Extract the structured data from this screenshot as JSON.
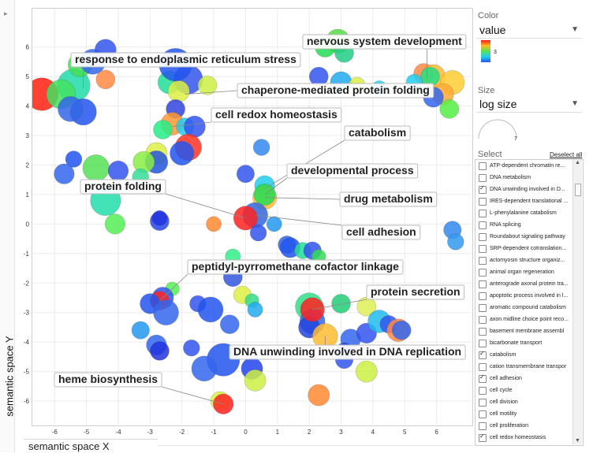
{
  "panel": {
    "color_title": "Color",
    "color_value": "value",
    "legend_max": "3",
    "size_title": "Size",
    "size_value": "log size",
    "size_legend_value": "7",
    "select_title": "Select",
    "deselect_all": "Deselect all"
  },
  "axes": {
    "ylabel": "semantic space Y",
    "xlabel": "semantic space X"
  },
  "list_items": [
    {
      "label": "ATP-dependent chromatin re...",
      "checked": false
    },
    {
      "label": "DNA metabolism",
      "checked": false
    },
    {
      "label": "DNA unwinding involved in D...",
      "checked": true
    },
    {
      "label": "IRES-dependent translational ...",
      "checked": false
    },
    {
      "label": "L-phenylalanine catabolism",
      "checked": false
    },
    {
      "label": "RNA splicing",
      "checked": false
    },
    {
      "label": "Roundabout signaling pathway",
      "checked": false
    },
    {
      "label": "SRP-dependent cotranslation...",
      "checked": false
    },
    {
      "label": "actomyosin structure organiz...",
      "checked": false
    },
    {
      "label": "animal organ regeneration",
      "checked": false
    },
    {
      "label": "anterograde axonal protein tra...",
      "checked": false
    },
    {
      "label": "apoptotic process involved in l...",
      "checked": false
    },
    {
      "label": "aromatic compound catabolism",
      "checked": false
    },
    {
      "label": "axon midline choice point reco...",
      "checked": false
    },
    {
      "label": "basement membrane assembl",
      "checked": false
    },
    {
      "label": "bicarbonate transport",
      "checked": false
    },
    {
      "label": "catabolism",
      "checked": true
    },
    {
      "label": "cation transmembrane transpor",
      "checked": false
    },
    {
      "label": "cell adhesion",
      "checked": true
    },
    {
      "label": "cell cycle",
      "checked": false
    },
    {
      "label": "cell division",
      "checked": false
    },
    {
      "label": "cell motility",
      "checked": false
    },
    {
      "label": "cell proliferation",
      "checked": false
    },
    {
      "label": "cell redox homeostasis",
      "checked": true
    }
  ],
  "chart_data": {
    "type": "scatter",
    "xlabel": "semantic space X",
    "ylabel": "semantic space Y",
    "xlim": [
      -6.7,
      7.1
    ],
    "ylim": [
      -6.8,
      7.3
    ],
    "xticks": [
      -6,
      -5,
      -4,
      -3,
      -2,
      -1,
      0,
      1,
      2,
      3,
      4,
      5,
      6
    ],
    "yticks": [
      -6,
      -5,
      -4,
      -3,
      -2,
      -1,
      0,
      1,
      2,
      3,
      4,
      5,
      6
    ],
    "points": [
      {
        "x": -5.4,
        "y": 4.7,
        "r": 2.6,
        "c": "#20dca8"
      },
      {
        "x": -6.4,
        "y": 4.4,
        "r": 2.6,
        "c": "#ff2010"
      },
      {
        "x": -5.8,
        "y": 4.4,
        "r": 2.3,
        "c": "#44e060"
      },
      {
        "x": -5.1,
        "y": 3.8,
        "r": 2.1,
        "c": "#2255ee"
      },
      {
        "x": -5.5,
        "y": 3.9,
        "r": 2.0,
        "c": "#3366e8"
      },
      {
        "x": -5.2,
        "y": 5.4,
        "r": 1.9,
        "c": "#44dd55"
      },
      {
        "x": -4.8,
        "y": 5.5,
        "r": 2.0,
        "c": "#3366ee"
      },
      {
        "x": -4.4,
        "y": 5.9,
        "r": 1.7,
        "c": "#3355ee"
      },
      {
        "x": -4.4,
        "y": 4.9,
        "r": 1.5,
        "c": "#ff8844"
      },
      {
        "x": -2.4,
        "y": 4.8,
        "r": 1.8,
        "c": "#22dd99"
      },
      {
        "x": -1.8,
        "y": 4.9,
        "r": 2.3,
        "c": "#3355ee"
      },
      {
        "x": -2.1,
        "y": 4.5,
        "r": 1.7,
        "c": "#ddee44"
      },
      {
        "x": -1.2,
        "y": 4.7,
        "r": 1.5,
        "c": "#ccf044"
      },
      {
        "x": -2.2,
        "y": 3.9,
        "r": 1.5,
        "c": "#3344dd"
      },
      {
        "x": -2.2,
        "y": 5.4,
        "r": 2.6,
        "c": "#2255ee"
      },
      {
        "x": -2.3,
        "y": 3.4,
        "r": 1.8,
        "c": "#ff9933"
      },
      {
        "x": -1.9,
        "y": 3.3,
        "r": 1.4,
        "c": "#22ccee"
      },
      {
        "x": -1.6,
        "y": 3.3,
        "r": 1.7,
        "c": "#3355ee"
      },
      {
        "x": -1.8,
        "y": 2.6,
        "r": 2.1,
        "c": "#ff3322"
      },
      {
        "x": -2.6,
        "y": 3.2,
        "r": 1.5,
        "c": "#22ee88"
      },
      {
        "x": -2.8,
        "y": 2.4,
        "r": 1.7,
        "c": "#ddee44"
      },
      {
        "x": -2.8,
        "y": 2.1,
        "r": 1.8,
        "c": "#2255dd"
      },
      {
        "x": -2.0,
        "y": 2.4,
        "r": 1.9,
        "c": "#2255ee"
      },
      {
        "x": -4.7,
        "y": 1.9,
        "r": 2.1,
        "c": "#55e055"
      },
      {
        "x": -5.4,
        "y": 2.2,
        "r": 1.3,
        "c": "#2255ee"
      },
      {
        "x": -5.7,
        "y": 1.7,
        "r": 1.6,
        "c": "#3366ee"
      },
      {
        "x": -4.0,
        "y": 1.8,
        "r": 1.6,
        "c": "#3355ee"
      },
      {
        "x": -3.2,
        "y": 2.1,
        "r": 1.7,
        "c": "#88ee44"
      },
      {
        "x": -3.3,
        "y": 1.6,
        "r": 1.3,
        "c": "#33dd99"
      },
      {
        "x": -4.4,
        "y": 0.8,
        "r": 2.4,
        "c": "#22ddaa"
      },
      {
        "x": -4.1,
        "y": 0.0,
        "r": 1.6,
        "c": "#55ee55"
      },
      {
        "x": -2.7,
        "y": 0.1,
        "r": 1.5,
        "c": "#2244ee"
      },
      {
        "x": -2.7,
        "y": 0.2,
        "r": 1.2,
        "c": "#2233dd"
      },
      {
        "x": -1.0,
        "y": 0.0,
        "r": 1.2,
        "c": "#ff8833"
      },
      {
        "x": 0.5,
        "y": 2.6,
        "r": 1.3,
        "c": "#3388ee"
      },
      {
        "x": 0.0,
        "y": 1.7,
        "r": 1.4,
        "c": "#3355ee"
      },
      {
        "x": 0.6,
        "y": 1.3,
        "r": 1.6,
        "c": "#22ccee"
      },
      {
        "x": 0.6,
        "y": 0.9,
        "r": 1.9,
        "c": "#ffbb33"
      },
      {
        "x": 0.6,
        "y": 1.0,
        "r": 1.7,
        "c": "#22dd55"
      },
      {
        "x": 0.3,
        "y": 0.3,
        "r": 2.0,
        "c": "#3366dd"
      },
      {
        "x": 0.0,
        "y": 0.2,
        "r": 1.9,
        "c": "#ff2222"
      },
      {
        "x": 0.4,
        "y": -0.3,
        "r": 1.3,
        "c": "#3355ee"
      },
      {
        "x": 0.9,
        "y": 0.0,
        "r": 1.2,
        "c": "#2299ee"
      },
      {
        "x": 1.3,
        "y": -0.7,
        "r": 1.4,
        "c": "#3366dd"
      },
      {
        "x": 1.4,
        "y": -0.8,
        "r": 1.6,
        "c": "#2255ee"
      },
      {
        "x": 1.8,
        "y": -0.9,
        "r": 1.3,
        "c": "#22dd99"
      },
      {
        "x": 2.1,
        "y": -0.9,
        "r": 1.4,
        "c": "#3355ee"
      },
      {
        "x": 2.3,
        "y": -1.1,
        "r": 1.1,
        "c": "#33dd55"
      },
      {
        "x": -0.4,
        "y": -1.1,
        "r": 1.2,
        "c": "#33ee88"
      },
      {
        "x": -0.4,
        "y": -1.8,
        "r": 1.5,
        "c": "#3355dd"
      },
      {
        "x": -2.3,
        "y": -2.2,
        "r": 1.1,
        "c": "#55ee55"
      },
      {
        "x": -2.6,
        "y": -2.5,
        "r": 1.7,
        "c": "#3355ee"
      },
      {
        "x": -2.7,
        "y": -2.6,
        "r": 1.5,
        "c": "#ff2222"
      },
      {
        "x": -3.0,
        "y": -2.7,
        "r": 1.6,
        "c": "#2255ee"
      },
      {
        "x": -2.5,
        "y": -3.0,
        "r": 2.0,
        "c": "#3366ee"
      },
      {
        "x": -1.5,
        "y": -2.7,
        "r": 1.3,
        "c": "#3355ee"
      },
      {
        "x": -1.1,
        "y": -2.9,
        "r": 2.0,
        "c": "#2255ee"
      },
      {
        "x": -0.1,
        "y": -2.4,
        "r": 1.4,
        "c": "#ddee44"
      },
      {
        "x": 0.2,
        "y": -2.6,
        "r": 1.1,
        "c": "#33dd88"
      },
      {
        "x": 0.3,
        "y": -2.9,
        "r": 1.2,
        "c": "#22aaee"
      },
      {
        "x": -0.5,
        "y": -3.4,
        "r": 1.5,
        "c": "#3366ee"
      },
      {
        "x": -3.3,
        "y": -3.6,
        "r": 1.4,
        "c": "#2299ee"
      },
      {
        "x": -2.8,
        "y": -4.1,
        "r": 1.6,
        "c": "#3366ee"
      },
      {
        "x": -1.7,
        "y": -4.2,
        "r": 1.3,
        "c": "#3355ee"
      },
      {
        "x": -2.7,
        "y": -4.3,
        "r": 1.5,
        "c": "#2233dd"
      },
      {
        "x": -0.7,
        "y": -4.6,
        "r": 2.6,
        "c": "#2255ee"
      },
      {
        "x": -1.3,
        "y": -4.9,
        "r": 2.0,
        "c": "#3366ee"
      },
      {
        "x": 0.2,
        "y": -4.9,
        "r": 1.7,
        "c": "#2244ee"
      },
      {
        "x": 0.3,
        "y": -5.3,
        "r": 1.7,
        "c": "#ccee44"
      },
      {
        "x": -0.8,
        "y": -6.0,
        "r": 1.5,
        "c": "#ddee44"
      },
      {
        "x": -0.7,
        "y": -6.1,
        "r": 1.6,
        "c": "#ff2222"
      },
      {
        "x": 2.0,
        "y": -2.8,
        "r": 2.2,
        "c": "#33dd88"
      },
      {
        "x": 2.1,
        "y": -3.3,
        "r": 2.0,
        "c": "#3366ee"
      },
      {
        "x": 2.0,
        "y": -3.5,
        "r": 1.7,
        "c": "#2244dd"
      },
      {
        "x": 2.1,
        "y": -2.9,
        "r": 1.9,
        "c": "#ff2222"
      },
      {
        "x": 3.0,
        "y": -2.7,
        "r": 1.5,
        "c": "#22cc77"
      },
      {
        "x": 3.8,
        "y": -2.8,
        "r": 1.5,
        "c": "#ddee55"
      },
      {
        "x": 2.5,
        "y": -3.8,
        "r": 2.0,
        "c": "#ffbb33"
      },
      {
        "x": 3.3,
        "y": -3.9,
        "r": 1.6,
        "c": "#3366ee"
      },
      {
        "x": 3.8,
        "y": -3.7,
        "r": 1.6,
        "c": "#3355ee"
      },
      {
        "x": 4.2,
        "y": -3.3,
        "r": 1.8,
        "c": "#22bbee"
      },
      {
        "x": 4.5,
        "y": -3.4,
        "r": 1.4,
        "c": "#3355ee"
      },
      {
        "x": 4.8,
        "y": -3.6,
        "r": 1.8,
        "c": "#ff8844"
      },
      {
        "x": 4.9,
        "y": -3.6,
        "r": 1.5,
        "c": "#3366ee"
      },
      {
        "x": 3.1,
        "y": -4.3,
        "r": 1.3,
        "c": "#2244dd"
      },
      {
        "x": 3.1,
        "y": -4.6,
        "r": 1.4,
        "c": "#3355ee"
      },
      {
        "x": 3.8,
        "y": -5.0,
        "r": 1.7,
        "c": "#ccee44"
      },
      {
        "x": 2.3,
        "y": -5.8,
        "r": 1.7,
        "c": "#ff8833"
      },
      {
        "x": 2.9,
        "y": 6.2,
        "r": 1.9,
        "c": "#55dd44"
      },
      {
        "x": 2.5,
        "y": 6.0,
        "r": 1.6,
        "c": "#22dd55"
      },
      {
        "x": 3.1,
        "y": 5.8,
        "r": 1.5,
        "c": "#22cc88"
      },
      {
        "x": 2.3,
        "y": 5.0,
        "r": 1.5,
        "c": "#3355ee"
      },
      {
        "x": 3.0,
        "y": 4.8,
        "r": 1.7,
        "c": "#22aaee"
      },
      {
        "x": 3.5,
        "y": 4.7,
        "r": 1.3,
        "c": "#ddee44"
      },
      {
        "x": 4.2,
        "y": 4.6,
        "r": 1.2,
        "c": "#22ccee"
      },
      {
        "x": 5.6,
        "y": 5.1,
        "r": 1.6,
        "c": "#ff8844"
      },
      {
        "x": 5.9,
        "y": 5.0,
        "r": 1.9,
        "c": "#ffbb33"
      },
      {
        "x": 6.5,
        "y": 4.8,
        "r": 1.9,
        "c": "#ffcc33"
      },
      {
        "x": 6.2,
        "y": 4.4,
        "r": 1.7,
        "c": "#ffaa33"
      },
      {
        "x": 5.8,
        "y": 5.0,
        "r": 1.5,
        "c": "#22dd88"
      },
      {
        "x": 5.3,
        "y": 4.8,
        "r": 1.3,
        "c": "#22ccee"
      },
      {
        "x": 5.9,
        "y": 4.3,
        "r": 1.6,
        "c": "#3366ee"
      },
      {
        "x": 6.4,
        "y": 3.9,
        "r": 1.5,
        "c": "#55ee44"
      },
      {
        "x": 6.5,
        "y": -0.2,
        "r": 1.4,
        "c": "#3388ee"
      },
      {
        "x": 6.6,
        "y": -0.6,
        "r": 1.3,
        "c": "#3399ee"
      }
    ],
    "labels": [
      {
        "text": "nervous system development",
        "ax": 5.7,
        "ay": 4.9
      },
      {
        "text": "response to endoplasmic reticulum stress",
        "ax": -5.1,
        "ay": 4.6
      },
      {
        "text": "chaperone-mediated protein folding",
        "ax": -1.9,
        "ay": 4.4
      },
      {
        "text": "cell redox homeostasis",
        "ax": -2.3,
        "ay": 3.3
      },
      {
        "text": "catabolism",
        "ax": 0.6,
        "ay": 1.2
      },
      {
        "text": "developmental process",
        "ax": 0.6,
        "ay": 1.0
      },
      {
        "text": "protein folding",
        "ax": 0.0,
        "ay": 0.2
      },
      {
        "text": "drug metabolism",
        "ax": 0.6,
        "ay": 0.9
      },
      {
        "text": "cell adhesion",
        "ax": 0.3,
        "ay": 0.3
      },
      {
        "text": "peptidyl-pyrromethane cofactor linkage",
        "ax": -2.7,
        "ay": -2.6
      },
      {
        "text": "protein secretion",
        "ax": 2.1,
        "ay": -2.9
      },
      {
        "text": "DNA unwinding involved in DNA replication",
        "ax": 2.5,
        "ay": -3.8
      },
      {
        "text": "heme biosynthesis",
        "ax": -0.7,
        "ay": -6.1
      }
    ]
  }
}
